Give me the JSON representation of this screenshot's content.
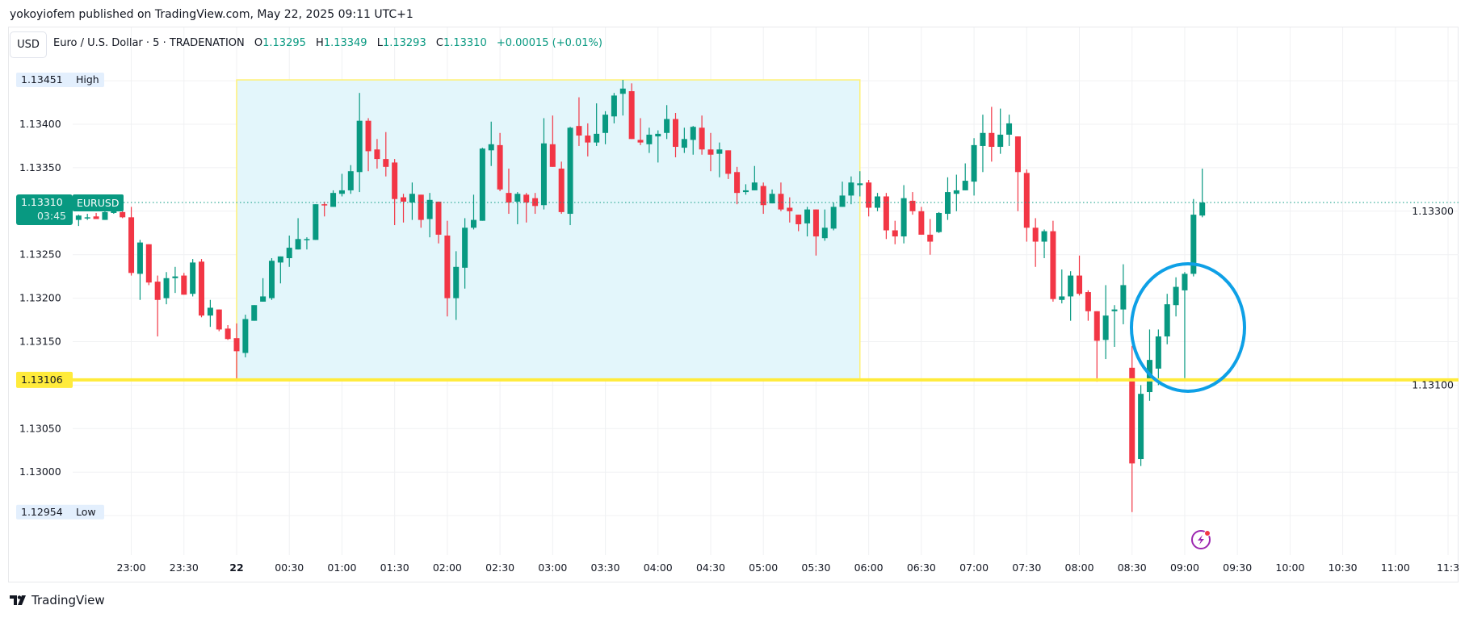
{
  "header": {
    "published": "yokoyiofem published on TradingView.com, May 22, 2025 09:11 UTC+1"
  },
  "toolbar": {
    "currency_button": "USD"
  },
  "legend": {
    "symbol": "Euro / U.S. Dollar · 5 · TRADENATION",
    "o_label": "O",
    "o_value": "1.13295",
    "h_label": "H",
    "h_value": "1.13349",
    "l_label": "L",
    "l_value": "1.13293",
    "c_label": "C",
    "c_value": "1.13310",
    "change": "+0.00015 (+0.01%)"
  },
  "price_axis": {
    "ticks": [
      "1.12950",
      "1.13000",
      "1.13050",
      "1.13100",
      "1.13150",
      "1.13200",
      "1.13250",
      "1.13300",
      "1.13350",
      "1.13400",
      "1.13450"
    ],
    "labelled_ticks": [
      "1.13000",
      "1.13050",
      "1.13100",
      "1.13150",
      "1.13200",
      "1.13250",
      "1.13300",
      "1.13350",
      "1.13400"
    ],
    "high_label": {
      "price": "1.13451",
      "text": "High"
    },
    "low_label": {
      "price": "1.12954",
      "text": "Low"
    },
    "current": {
      "price": "1.13310",
      "symbol": "EURUSD",
      "countdown": "03:45"
    },
    "level_label": {
      "price": "1.13106"
    }
  },
  "time_axis": {
    "labels": [
      "23:00",
      "23:30",
      "22",
      "00:30",
      "01:00",
      "01:30",
      "02:00",
      "02:30",
      "03:00",
      "03:30",
      "04:00",
      "04:30",
      "05:00",
      "05:30",
      "06:00",
      "06:30",
      "07:00",
      "07:30",
      "08:00",
      "08:30",
      "09:00",
      "09:30",
      "10:00",
      "10:30",
      "11:00",
      "11:3"
    ],
    "first_label_offset_bars": -12,
    "bars_per_label": 6
  },
  "colors": {
    "up": "#089981",
    "down": "#f23645",
    "level": "#ffeb3b",
    "range_fill": "#e3f6fb",
    "range_border": "#fff176",
    "circle": "#0ea0e6",
    "label_bg": "#e3effd"
  },
  "drawings": {
    "range_box": {
      "start_bar": 0,
      "end_bar": 71,
      "top_price": 1.13451,
      "bottom_price": 1.13106
    },
    "horizontal_level": 1.13106
  },
  "icons": {
    "alert": "lightning-icon",
    "logo": "tradingview-logo"
  },
  "footer": {
    "brand": "TradingView"
  },
  "chart_data": {
    "type": "candlestick",
    "symbol": "EURUSD",
    "interval_minutes": 5,
    "first_bar_time": "22:30",
    "first_bar_offset": -18,
    "ohlc": [
      [
        1.1329,
        1.13296,
        1.13283,
        1.13295
      ],
      [
        1.13293,
        1.13297,
        1.1329,
        1.13293
      ],
      [
        1.13294,
        1.13298,
        1.13291,
        1.13291
      ],
      [
        1.1329,
        1.133,
        1.1329,
        1.13299
      ],
      [
        1.13298,
        1.13303,
        1.13297,
        1.133
      ],
      [
        1.13299,
        1.133,
        1.13292,
        1.13293
      ],
      [
        1.13293,
        1.13305,
        1.13226,
        1.13229
      ],
      [
        1.13228,
        1.13267,
        1.13198,
        1.13264
      ],
      [
        1.13262,
        1.13262,
        1.13215,
        1.13218
      ],
      [
        1.13219,
        1.13226,
        1.13156,
        1.13198
      ],
      [
        1.132,
        1.1323,
        1.13193,
        1.13223
      ],
      [
        1.13223,
        1.13236,
        1.13206,
        1.13225
      ],
      [
        1.13226,
        1.13229,
        1.13204,
        1.13204
      ],
      [
        1.13205,
        1.13245,
        1.13202,
        1.13241
      ],
      [
        1.13242,
        1.13245,
        1.13178,
        1.1318
      ],
      [
        1.1318,
        1.13198,
        1.13167,
        1.13189
      ],
      [
        1.13187,
        1.13187,
        1.13162,
        1.13164
      ],
      [
        1.13165,
        1.13169,
        1.13152,
        1.13153
      ],
      [
        1.13154,
        1.13171,
        1.13106,
        1.13139
      ],
      [
        1.13137,
        1.13181,
        1.13132,
        1.13176
      ],
      [
        1.13174,
        1.13192,
        1.13174,
        1.13192
      ],
      [
        1.13196,
        1.13223,
        1.13196,
        1.13202
      ],
      [
        1.132,
        1.13246,
        1.13198,
        1.13243
      ],
      [
        1.13241,
        1.13248,
        1.13217,
        1.13248
      ],
      [
        1.13246,
        1.13272,
        1.13236,
        1.13258
      ],
      [
        1.13256,
        1.13292,
        1.13256,
        1.13268
      ],
      [
        1.13267,
        1.1327,
        1.13256,
        1.13268
      ],
      [
        1.13267,
        1.13308,
        1.13267,
        1.13308
      ],
      [
        1.13308,
        1.13311,
        1.13294,
        1.13307
      ],
      [
        1.13305,
        1.13324,
        1.13305,
        1.13321
      ],
      [
        1.1332,
        1.13343,
        1.13317,
        1.13324
      ],
      [
        1.13324,
        1.13353,
        1.1332,
        1.13346
      ],
      [
        1.13345,
        1.13436,
        1.13322,
        1.13404
      ],
      [
        1.13404,
        1.13407,
        1.13346,
        1.13369
      ],
      [
        1.13371,
        1.13383,
        1.13349,
        1.1336
      ],
      [
        1.1336,
        1.13391,
        1.1334,
        1.13351
      ],
      [
        1.13356,
        1.1336,
        1.13284,
        1.13314
      ],
      [
        1.13316,
        1.1332,
        1.13287,
        1.13311
      ],
      [
        1.1331,
        1.13333,
        1.1329,
        1.1332
      ],
      [
        1.13319,
        1.13319,
        1.13281,
        1.1329
      ],
      [
        1.13291,
        1.13321,
        1.1327,
        1.13313
      ],
      [
        1.13311,
        1.13311,
        1.13263,
        1.13273
      ],
      [
        1.13272,
        1.13289,
        1.13179,
        1.132
      ],
      [
        1.132,
        1.13254,
        1.13175,
        1.13236
      ],
      [
        1.13235,
        1.13292,
        1.13211,
        1.13281
      ],
      [
        1.13281,
        1.13319,
        1.13279,
        1.1329
      ],
      [
        1.13289,
        1.13373,
        1.13289,
        1.13372
      ],
      [
        1.1337,
        1.13403,
        1.13352,
        1.13377
      ],
      [
        1.13376,
        1.1339,
        1.13323,
        1.13325
      ],
      [
        1.13321,
        1.13349,
        1.13297,
        1.1331
      ],
      [
        1.13311,
        1.13322,
        1.13285,
        1.1332
      ],
      [
        1.13319,
        1.13321,
        1.13287,
        1.1331
      ],
      [
        1.13315,
        1.13321,
        1.13297,
        1.13306
      ],
      [
        1.13307,
        1.13407,
        1.13302,
        1.13378
      ],
      [
        1.13377,
        1.1341,
        1.13351,
        1.13351
      ],
      [
        1.13349,
        1.13357,
        1.13297,
        1.13299
      ],
      [
        1.13297,
        1.13397,
        1.13284,
        1.13396
      ],
      [
        1.13398,
        1.13431,
        1.13375,
        1.13387
      ],
      [
        1.13387,
        1.13401,
        1.13363,
        1.13379
      ],
      [
        1.13379,
        1.13424,
        1.13375,
        1.13389
      ],
      [
        1.1339,
        1.13415,
        1.13377,
        1.13411
      ],
      [
        1.13409,
        1.13436,
        1.13401,
        1.13433
      ],
      [
        1.13435,
        1.13451,
        1.1341,
        1.13441
      ],
      [
        1.13438,
        1.13447,
        1.13383,
        1.13383
      ],
      [
        1.13382,
        1.13407,
        1.13376,
        1.13379
      ],
      [
        1.13377,
        1.13396,
        1.13367,
        1.13388
      ],
      [
        1.13386,
        1.13393,
        1.13356,
        1.13389
      ],
      [
        1.1339,
        1.13422,
        1.13383,
        1.13406
      ],
      [
        1.13406,
        1.13413,
        1.13362,
        1.13374
      ],
      [
        1.13373,
        1.13396,
        1.13367,
        1.13383
      ],
      [
        1.13382,
        1.13398,
        1.13365,
        1.13397
      ],
      [
        1.13396,
        1.1341,
        1.13365,
        1.13371
      ],
      [
        1.13371,
        1.1339,
        1.13346,
        1.13365
      ],
      [
        1.13366,
        1.13379,
        1.13339,
        1.13371
      ],
      [
        1.1337,
        1.1337,
        1.13337,
        1.13343
      ],
      [
        1.13345,
        1.13351,
        1.13308,
        1.13321
      ],
      [
        1.13322,
        1.13331,
        1.13319,
        1.13324
      ],
      [
        1.13324,
        1.13352,
        1.13324,
        1.13333
      ],
      [
        1.13329,
        1.13333,
        1.13297,
        1.13307
      ],
      [
        1.13309,
        1.13325,
        1.13309,
        1.1332
      ],
      [
        1.1332,
        1.13333,
        1.133,
        1.13302
      ],
      [
        1.13304,
        1.13316,
        1.13287,
        1.133
      ],
      [
        1.13296,
        1.13296,
        1.13277,
        1.13285
      ],
      [
        1.13286,
        1.13305,
        1.13271,
        1.13302
      ],
      [
        1.13302,
        1.13302,
        1.13249,
        1.13271
      ],
      [
        1.13269,
        1.13302,
        1.13266,
        1.13281
      ],
      [
        1.1328,
        1.1331,
        1.13278,
        1.13305
      ],
      [
        1.13305,
        1.13334,
        1.13305,
        1.13318
      ],
      [
        1.13318,
        1.1334,
        1.13308,
        1.13333
      ],
      [
        1.1333,
        1.13346,
        1.13317,
        1.13332
      ],
      [
        1.13333,
        1.13336,
        1.13294,
        1.13304
      ],
      [
        1.13304,
        1.13321,
        1.133,
        1.13317
      ],
      [
        1.13317,
        1.13321,
        1.13268,
        1.13278
      ],
      [
        1.13278,
        1.13289,
        1.13262,
        1.13271
      ],
      [
        1.13271,
        1.1333,
        1.13263,
        1.13315
      ],
      [
        1.13312,
        1.13322,
        1.13296,
        1.133
      ],
      [
        1.133,
        1.13305,
        1.13273,
        1.13273
      ],
      [
        1.13273,
        1.13291,
        1.1325,
        1.13265
      ],
      [
        1.13276,
        1.13299,
        1.13275,
        1.13298
      ],
      [
        1.13297,
        1.13339,
        1.1329,
        1.13322
      ],
      [
        1.1332,
        1.13342,
        1.133,
        1.13324
      ],
      [
        1.13324,
        1.13355,
        1.13324,
        1.13335
      ],
      [
        1.13334,
        1.13384,
        1.13318,
        1.13376
      ],
      [
        1.13375,
        1.13411,
        1.13345,
        1.1339
      ],
      [
        1.1339,
        1.1342,
        1.13357,
        1.13374
      ],
      [
        1.13374,
        1.13418,
        1.13366,
        1.13388
      ],
      [
        1.13388,
        1.13411,
        1.13375,
        1.13401
      ],
      [
        1.13386,
        1.13386,
        1.133,
        1.13345
      ],
      [
        1.13344,
        1.13348,
        1.13265,
        1.13281
      ],
      [
        1.13281,
        1.13292,
        1.13236,
        1.13265
      ],
      [
        1.13265,
        1.13279,
        1.13246,
        1.13277
      ],
      [
        1.13277,
        1.13289,
        1.13196,
        1.13199
      ],
      [
        1.13198,
        1.13233,
        1.13194,
        1.13202
      ],
      [
        1.13202,
        1.13231,
        1.13174,
        1.13226
      ],
      [
        1.13226,
        1.13249,
        1.13203,
        1.13205
      ],
      [
        1.13207,
        1.13209,
        1.13174,
        1.13185
      ],
      [
        1.13185,
        1.13185,
        1.13104,
        1.13151
      ],
      [
        1.13152,
        1.13215,
        1.1313,
        1.1318
      ],
      [
        1.13185,
        1.13192,
        1.13144,
        1.13187
      ],
      [
        1.13187,
        1.13239,
        1.1317,
        1.13215
      ],
      [
        1.1312,
        1.13145,
        1.12954,
        1.1301
      ],
      [
        1.13015,
        1.131,
        1.13007,
        1.1309
      ],
      [
        1.13092,
        1.13164,
        1.13082,
        1.13129
      ],
      [
        1.13119,
        1.13164,
        1.131,
        1.13156
      ],
      [
        1.13156,
        1.13205,
        1.13147,
        1.13193
      ],
      [
        1.13192,
        1.13224,
        1.13179,
        1.13213
      ],
      [
        1.13209,
        1.1323,
        1.13108,
        1.13228
      ],
      [
        1.13228,
        1.13314,
        1.13225,
        1.13296
      ],
      [
        1.13295,
        1.13349,
        1.13293,
        1.1331
      ]
    ]
  }
}
